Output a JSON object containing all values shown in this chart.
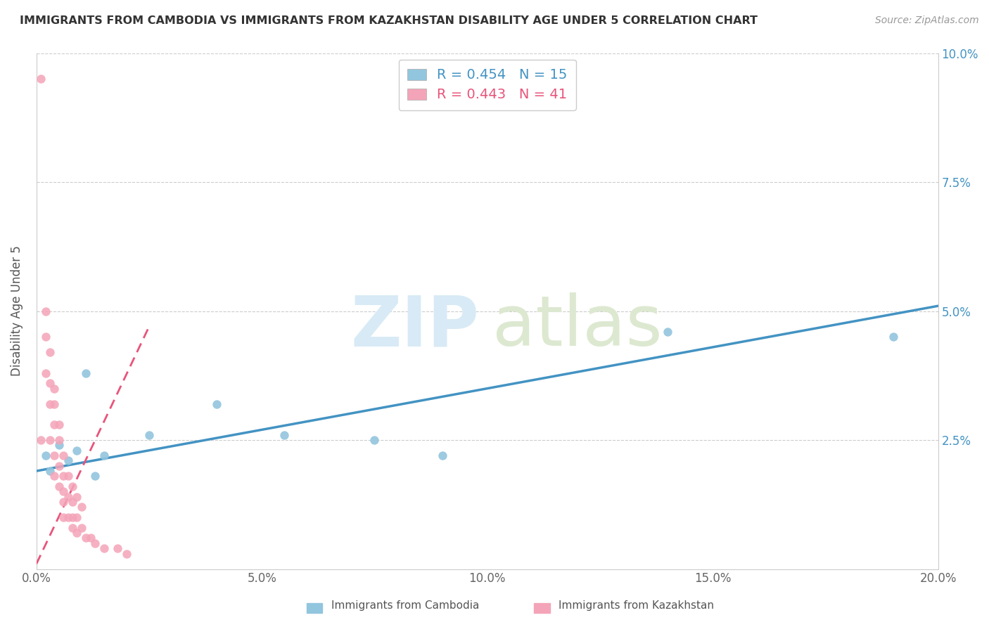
{
  "title": "IMMIGRANTS FROM CAMBODIA VS IMMIGRANTS FROM KAZAKHSTAN DISABILITY AGE UNDER 5 CORRELATION CHART",
  "source": "Source: ZipAtlas.com",
  "ylabel": "Disability Age Under 5",
  "xlim": [
    0.0,
    0.2
  ],
  "ylim": [
    0.0,
    0.1
  ],
  "xticks": [
    0.0,
    0.05,
    0.1,
    0.15,
    0.2
  ],
  "yticks": [
    0.0,
    0.025,
    0.05,
    0.075,
    0.1
  ],
  "xtick_labels": [
    "0.0%",
    "5.0%",
    "10.0%",
    "15.0%",
    "20.0%"
  ],
  "ytick_labels_right": [
    "",
    "2.5%",
    "5.0%",
    "7.5%",
    "10.0%"
  ],
  "legend_labels": [
    "Immigrants from Cambodia",
    "Immigrants from Kazakhstan"
  ],
  "cambodia_color": "#92c5de",
  "kazakhstan_color": "#f4a4b8",
  "cambodia_line_color": "#4393c3",
  "kazakhstan_line_color": "#e8547a",
  "cambodia_R": 0.454,
  "cambodia_N": 15,
  "kazakhstan_R": 0.443,
  "kazakhstan_N": 41,
  "cambodia_x": [
    0.002,
    0.003,
    0.005,
    0.007,
    0.009,
    0.011,
    0.013,
    0.015,
    0.025,
    0.04,
    0.055,
    0.075,
    0.09,
    0.14,
    0.19
  ],
  "cambodia_y": [
    0.022,
    0.019,
    0.024,
    0.021,
    0.023,
    0.038,
    0.018,
    0.022,
    0.026,
    0.032,
    0.026,
    0.025,
    0.022,
    0.046,
    0.045
  ],
  "kazakhstan_x": [
    0.001,
    0.001,
    0.002,
    0.002,
    0.002,
    0.003,
    0.003,
    0.003,
    0.003,
    0.004,
    0.004,
    0.004,
    0.004,
    0.004,
    0.005,
    0.005,
    0.005,
    0.005,
    0.006,
    0.006,
    0.006,
    0.006,
    0.006,
    0.007,
    0.007,
    0.007,
    0.008,
    0.008,
    0.008,
    0.008,
    0.009,
    0.009,
    0.009,
    0.01,
    0.01,
    0.011,
    0.012,
    0.013,
    0.015,
    0.018,
    0.02
  ],
  "kazakhstan_y": [
    0.095,
    0.025,
    0.05,
    0.045,
    0.038,
    0.042,
    0.036,
    0.032,
    0.025,
    0.035,
    0.032,
    0.028,
    0.022,
    0.018,
    0.028,
    0.025,
    0.02,
    0.016,
    0.022,
    0.018,
    0.015,
    0.013,
    0.01,
    0.018,
    0.014,
    0.01,
    0.016,
    0.013,
    0.01,
    0.008,
    0.014,
    0.01,
    0.007,
    0.012,
    0.008,
    0.006,
    0.006,
    0.005,
    0.004,
    0.004,
    0.003
  ],
  "cam_line_x0": 0.0,
  "cam_line_y0": 0.019,
  "cam_line_x1": 0.2,
  "cam_line_y1": 0.051,
  "kaz_line_x0": 0.0,
  "kaz_line_y0": 0.001,
  "kaz_line_x1": 0.025,
  "kaz_line_y1": 0.047
}
